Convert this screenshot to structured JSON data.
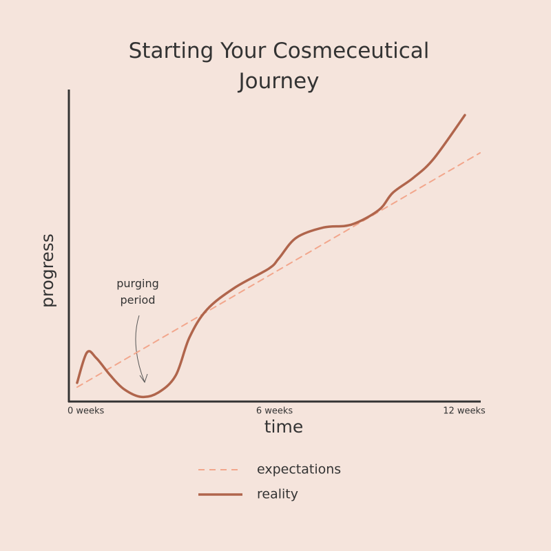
{
  "chart_data": {
    "type": "line",
    "title": "Starting Your Cosmeceutical Journey",
    "x_label": "time",
    "y_label": "progress",
    "annotation": "purging period",
    "xlim": [
      -0.5,
      12.5
    ],
    "ylim": [
      0,
      100
    ],
    "xticks": [
      {
        "value": 0,
        "label": "0 weeks"
      },
      {
        "value": 6,
        "label": "6 weeks"
      },
      {
        "value": 12,
        "label": "12 weeks"
      }
    ],
    "series": [
      {
        "name": "expectations",
        "color": "#f2a68c",
        "dashed": true,
        "x": [
          -0.24,
          12.5
        ],
        "values": [
          4.6,
          79.7
        ]
      },
      {
        "name": "reality",
        "color": "#b0654c",
        "dashed": false,
        "x": [
          -0.24,
          0.07,
          0.37,
          0.81,
          1.24,
          1.79,
          2.33,
          2.88,
          3.31,
          3.86,
          4.73,
          5.82,
          6.14,
          6.69,
          7.56,
          8.43,
          9.3,
          9.74,
          10.39,
          11.04,
          12.02
        ],
        "values": [
          6,
          15.7,
          13.9,
          8.4,
          4,
          1.5,
          2.9,
          8.4,
          20.5,
          29.4,
          36.4,
          42.6,
          45.9,
          52.5,
          55.8,
          56.7,
          61.4,
          66.9,
          71.7,
          77.9,
          91.8
        ]
      }
    ]
  }
}
